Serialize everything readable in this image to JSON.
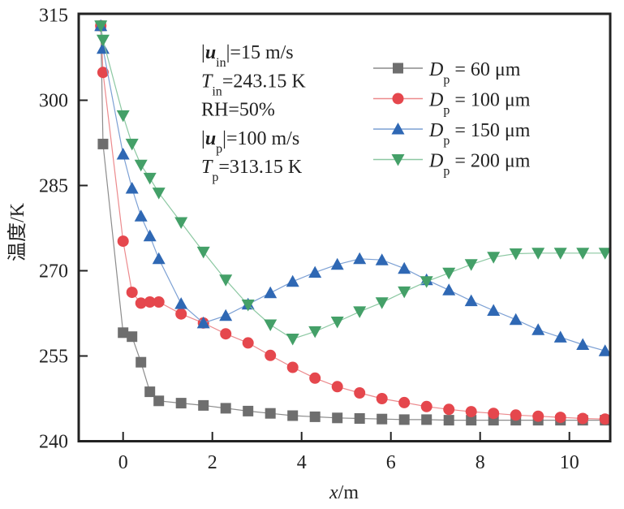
{
  "chart_data": {
    "type": "line",
    "title": "",
    "xlabel": "x/m",
    "xlabel_parts": {
      "italic": "x",
      "rest": "/m"
    },
    "ylabel": "温度/K",
    "xlim": [
      -1.0,
      10.9
    ],
    "ylim": [
      240,
      315
    ],
    "xticks": [
      0,
      2,
      4,
      6,
      8,
      10
    ],
    "xtick_labels": [
      "0",
      "2",
      "4",
      "6",
      "8",
      "10"
    ],
    "yticks": [
      240,
      255,
      270,
      285,
      300,
      315
    ],
    "ytick_labels": [
      "240",
      "255",
      "270",
      "285",
      "300",
      "315"
    ],
    "grid": false,
    "legend_position": "top-right",
    "annotations": [
      {
        "prefix": "|",
        "main": "u",
        "main_style": "bold-italic",
        "sub": "in",
        "suffix": "|=15 m/s"
      },
      {
        "prefix": "",
        "main": "T",
        "main_style": "italic",
        "sub": "in",
        "suffix": "=243.15 K"
      },
      {
        "prefix": "",
        "main": "RH=50%",
        "main_style": "normal",
        "sub": "",
        "suffix": ""
      },
      {
        "prefix": "|",
        "main": "u",
        "main_style": "bold-italic",
        "sub": "p",
        "suffix": "|=100 m/s"
      },
      {
        "prefix": "",
        "main": "T",
        "main_style": "italic",
        "sub": "p",
        "suffix": "=313.15 K"
      }
    ],
    "series": [
      {
        "name": "Dp = 60 μm",
        "label_main": "D",
        "label_sub": "p",
        "label_rest": " = 60 μm",
        "marker": "square",
        "color": "#6e6e6e",
        "line_color": "#8c8c8c",
        "x": [
          -0.5,
          -0.45,
          0,
          0.2,
          0.4,
          0.6,
          0.8,
          1.3,
          1.8,
          2.3,
          2.8,
          3.3,
          3.8,
          4.3,
          4.8,
          5.3,
          5.8,
          6.3,
          6.8,
          7.3,
          7.8,
          8.3,
          8.8,
          9.3,
          9.8,
          10.3,
          10.8
        ],
        "values": [
          313.1,
          292.3,
          259.1,
          258.4,
          253.9,
          248.7,
          247.1,
          246.7,
          246.3,
          245.8,
          245.3,
          244.9,
          244.5,
          244.3,
          244.1,
          244.0,
          243.9,
          243.8,
          243.8,
          243.7,
          243.7,
          243.7,
          243.7,
          243.7,
          243.7,
          243.7,
          243.7
        ]
      },
      {
        "name": "Dp = 100 μm",
        "label_main": "D",
        "label_sub": "p",
        "label_rest": " = 100 μm",
        "marker": "circle",
        "color": "#e5474d",
        "line_color": "#ec8a8d",
        "x": [
          -0.5,
          -0.45,
          0,
          0.2,
          0.4,
          0.6,
          0.8,
          1.3,
          1.8,
          2.3,
          2.8,
          3.3,
          3.8,
          4.3,
          4.8,
          5.3,
          5.8,
          6.3,
          6.8,
          7.3,
          7.8,
          8.3,
          8.8,
          9.3,
          9.8,
          10.3,
          10.8
        ],
        "values": [
          313.1,
          304.9,
          275.2,
          266.2,
          264.3,
          264.5,
          264.5,
          262.4,
          260.8,
          258.9,
          257.3,
          255.1,
          253.0,
          251.1,
          249.6,
          248.5,
          247.5,
          246.8,
          246.1,
          245.6,
          245.2,
          244.9,
          244.6,
          244.4,
          244.2,
          244.0,
          243.9
        ]
      },
      {
        "name": "Dp = 150 μm",
        "label_main": "D",
        "label_sub": "p",
        "label_rest": " = 150 μm",
        "marker": "triangle-up",
        "color": "#2f68b4",
        "line_color": "#7ca0d4",
        "x": [
          -0.5,
          -0.45,
          0,
          0.2,
          0.4,
          0.6,
          0.8,
          1.3,
          1.8,
          2.3,
          2.8,
          3.3,
          3.8,
          4.3,
          4.8,
          5.3,
          5.8,
          6.3,
          6.8,
          7.3,
          7.8,
          8.3,
          8.8,
          9.3,
          9.8,
          10.3,
          10.8
        ],
        "values": [
          313.1,
          309.1,
          290.5,
          284.5,
          279.6,
          276.1,
          272.1,
          264.2,
          260.8,
          262.1,
          264.1,
          266.1,
          268.1,
          269.7,
          271.1,
          272.1,
          271.9,
          270.4,
          268.4,
          266.6,
          264.7,
          263.0,
          261.4,
          259.6,
          258.3,
          257.0,
          255.9
        ]
      },
      {
        "name": "Dp = 200 μm",
        "label_main": "D",
        "label_sub": "p",
        "label_rest": " = 200 μm",
        "marker": "triangle-down",
        "color": "#44a068",
        "line_color": "#8cc8a2",
        "x": [
          -0.5,
          -0.45,
          0,
          0.2,
          0.4,
          0.6,
          0.8,
          1.3,
          1.8,
          2.3,
          2.8,
          3.3,
          3.8,
          4.3,
          4.8,
          5.3,
          5.8,
          6.3,
          6.8,
          7.3,
          7.8,
          8.3,
          8.8,
          9.3,
          9.8,
          10.3,
          10.8
        ],
        "values": [
          313.1,
          310.6,
          297.3,
          292.3,
          288.6,
          286.3,
          283.7,
          278.5,
          273.3,
          268.4,
          264.0,
          260.5,
          258.0,
          259.3,
          261.0,
          262.8,
          264.4,
          266.3,
          268.1,
          269.6,
          271.1,
          272.4,
          273.0,
          273.1,
          273.1,
          273.1,
          273.1
        ]
      }
    ]
  }
}
